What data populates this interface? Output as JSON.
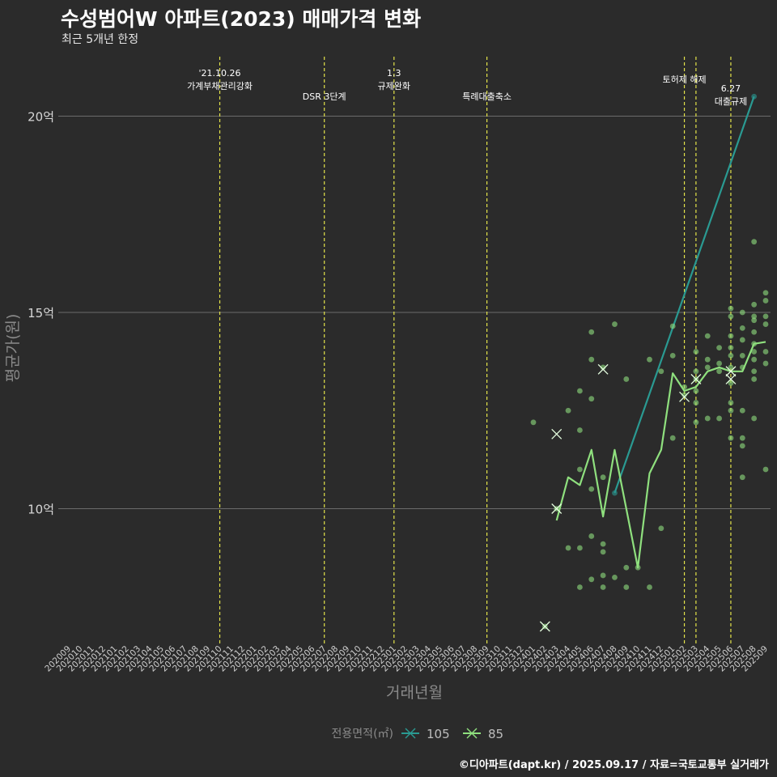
{
  "header": {
    "title": "수성범어W 아파트(2023) 매매가격 변화",
    "subtitle": "최근 5개년 한정"
  },
  "caption": "©디아파트(dapt.kr) / 2025.09.17 / 자료=국토교통부 실거래가",
  "colors": {
    "background": "#2b2b2b",
    "grid": "#6b6b6b",
    "event_line": "#e3e34a",
    "series_105": "#2a9a92",
    "series_85": "#8fe07e",
    "axis_title": "#8a8a8a"
  },
  "chart_data": {
    "type": "line",
    "xlabel": "거래년월",
    "ylabel": "평균가(원)",
    "x_categories": [
      "202009",
      "202010",
      "202011",
      "202012",
      "202101",
      "202102",
      "202103",
      "202104",
      "202105",
      "202106",
      "202107",
      "202108",
      "202109",
      "202110",
      "202111",
      "202112",
      "202201",
      "202202",
      "202203",
      "202204",
      "202205",
      "202206",
      "202207",
      "202208",
      "202209",
      "202210",
      "202211",
      "202212",
      "202301",
      "202302",
      "202303",
      "202304",
      "202305",
      "202306",
      "202307",
      "202308",
      "202309",
      "202310",
      "202311",
      "202312",
      "202401",
      "202402",
      "202403",
      "202404",
      "202405",
      "202406",
      "202407",
      "202408",
      "202409",
      "202410",
      "202411",
      "202412",
      "202501",
      "202502",
      "202503",
      "202504",
      "202505",
      "202506",
      "202507",
      "202508",
      "202509"
    ],
    "y_ticks": [
      {
        "value": 10,
        "label": "10억"
      },
      {
        "value": 15,
        "label": "15억"
      },
      {
        "value": 20,
        "label": "20억"
      }
    ],
    "ylim": [
      6.7,
      21.2
    ],
    "grid": true,
    "legend": {
      "title": "전용면적(㎡)",
      "position": "bottom",
      "items": [
        {
          "label": "105",
          "color": "#2a9a92"
        },
        {
          "label": "85",
          "color": "#8fe07e"
        }
      ]
    },
    "events": [
      {
        "x": "202110",
        "lines": [
          "'21.10.26",
          "가계부채관리강화"
        ],
        "row": 0
      },
      {
        "x": "202207",
        "lines": [
          "DSR 3단계"
        ],
        "row": 1
      },
      {
        "x": "202301",
        "lines": [
          "1.3",
          "규제완화"
        ],
        "row": 0
      },
      {
        "x": "202309",
        "lines": [
          "특례대출축소"
        ],
        "row": 1
      },
      {
        "x": "202502",
        "lines": [
          "토허제 해제"
        ],
        "row": 0,
        "single": true
      },
      {
        "x": "202503",
        "lines": [],
        "row": 0
      },
      {
        "x": "202506",
        "lines": [
          "6.27",
          "대출규제"
        ],
        "row": 2
      }
    ],
    "series": [
      {
        "name": "105",
        "color": "#2a9a92",
        "line": [
          [
            "202408",
            10.4
          ],
          [
            "202508",
            20.5
          ]
        ],
        "points": [
          [
            "202408",
            10.4
          ],
          [
            "202508",
            20.5
          ]
        ],
        "crosses": []
      },
      {
        "name": "85",
        "color": "#8fe07e",
        "line": [
          [
            "202403",
            9.7
          ],
          [
            "202404",
            10.8
          ],
          [
            "202405",
            10.6
          ],
          [
            "202406",
            11.5
          ],
          [
            "202407",
            9.8
          ],
          [
            "202408",
            11.5
          ],
          [
            "202409",
            10.0
          ],
          [
            "202410",
            8.5
          ],
          [
            "202411",
            10.9
          ],
          [
            "202412",
            11.5
          ],
          [
            "202501",
            13.45
          ],
          [
            "202502",
            13.0
          ],
          [
            "202503",
            13.1
          ],
          [
            "202504",
            13.5
          ],
          [
            "202505",
            13.6
          ],
          [
            "202506",
            13.5
          ],
          [
            "202507",
            13.5
          ],
          [
            "202508",
            14.2
          ],
          [
            "202509",
            14.25
          ]
        ],
        "points": [
          [
            "202401",
            12.2
          ],
          [
            "202402",
            7.0
          ],
          [
            "202403",
            10.0
          ],
          [
            "202404",
            12.5
          ],
          [
            "202404",
            9.0
          ],
          [
            "202405",
            13.0
          ],
          [
            "202405",
            12.0
          ],
          [
            "202405",
            11.0
          ],
          [
            "202405",
            9.0
          ],
          [
            "202405",
            8.0
          ],
          [
            "202406",
            14.5
          ],
          [
            "202406",
            13.8
          ],
          [
            "202406",
            12.8
          ],
          [
            "202406",
            10.5
          ],
          [
            "202406",
            9.3
          ],
          [
            "202406",
            8.2
          ],
          [
            "202407",
            13.6
          ],
          [
            "202407",
            10.8
          ],
          [
            "202407",
            9.1
          ],
          [
            "202407",
            8.9
          ],
          [
            "202407",
            8.3
          ],
          [
            "202407",
            8.0
          ],
          [
            "202408",
            14.7
          ],
          [
            "202408",
            8.25
          ],
          [
            "202409",
            13.3
          ],
          [
            "202409",
            8.5
          ],
          [
            "202409",
            8.0
          ],
          [
            "202410",
            8.5
          ],
          [
            "202411",
            13.8
          ],
          [
            "202411",
            8.0
          ],
          [
            "202412",
            13.5
          ],
          [
            "202412",
            9.5
          ],
          [
            "202501",
            14.65
          ],
          [
            "202501",
            13.9
          ],
          [
            "202501",
            11.8
          ],
          [
            "202502",
            13.1
          ],
          [
            "202502",
            12.9
          ],
          [
            "202503",
            14.0
          ],
          [
            "202503",
            13.5
          ],
          [
            "202503",
            13.3
          ],
          [
            "202503",
            13.0
          ],
          [
            "202503",
            12.7
          ],
          [
            "202503",
            12.2
          ],
          [
            "202504",
            14.4
          ],
          [
            "202504",
            13.8
          ],
          [
            "202504",
            13.6
          ],
          [
            "202504",
            12.3
          ],
          [
            "202505",
            14.1
          ],
          [
            "202505",
            13.7
          ],
          [
            "202505",
            13.5
          ],
          [
            "202505",
            12.3
          ],
          [
            "202506",
            15.1
          ],
          [
            "202506",
            14.9
          ],
          [
            "202506",
            14.4
          ],
          [
            "202506",
            14.1
          ],
          [
            "202506",
            13.9
          ],
          [
            "202506",
            13.6
          ],
          [
            "202506",
            13.2
          ],
          [
            "202506",
            12.7
          ],
          [
            "202506",
            12.5
          ],
          [
            "202506",
            11.8
          ],
          [
            "202507",
            15.0
          ],
          [
            "202507",
            14.6
          ],
          [
            "202507",
            14.3
          ],
          [
            "202507",
            13.9
          ],
          [
            "202507",
            13.6
          ],
          [
            "202507",
            12.5
          ],
          [
            "202507",
            11.8
          ],
          [
            "202507",
            11.6
          ],
          [
            "202507",
            10.8
          ],
          [
            "202508",
            16.8
          ],
          [
            "202508",
            15.2
          ],
          [
            "202508",
            14.9
          ],
          [
            "202508",
            14.8
          ],
          [
            "202508",
            14.5
          ],
          [
            "202508",
            14.2
          ],
          [
            "202508",
            14.0
          ],
          [
            "202508",
            13.8
          ],
          [
            "202508",
            13.5
          ],
          [
            "202508",
            13.3
          ],
          [
            "202508",
            12.3
          ],
          [
            "202509",
            15.5
          ],
          [
            "202509",
            15.3
          ],
          [
            "202509",
            14.9
          ],
          [
            "202509",
            14.7
          ],
          [
            "202509",
            14.0
          ],
          [
            "202509",
            13.7
          ],
          [
            "202509",
            11.0
          ]
        ],
        "crosses": [
          [
            "202402",
            7.0
          ],
          [
            "202403",
            11.9
          ],
          [
            "202403",
            10.0
          ],
          [
            "202407",
            13.55
          ],
          [
            "202502",
            12.85
          ],
          [
            "202503",
            13.3
          ],
          [
            "202506",
            13.3
          ],
          [
            "202506",
            13.5
          ]
        ]
      }
    ]
  }
}
